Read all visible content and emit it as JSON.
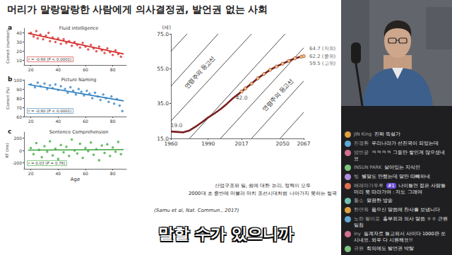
{
  "header": {
    "title": "머리가 말랑말랑한 사람에게 의사결정권, 발언권 없는 사회"
  },
  "chart_data": [
    {
      "type": "scatter",
      "panel": "a",
      "title": "Fluid intelligence",
      "y_label": "Correct (number)",
      "annotation": "r = -0.68 (P < 0.0001)",
      "color": "#d62a2a",
      "grid": false,
      "xlim": [
        15,
        90
      ],
      "xticks": [
        20,
        40,
        60,
        80
      ],
      "ylim": [
        5,
        45
      ],
      "yticks": [
        10,
        20,
        30,
        40
      ],
      "x": [
        20,
        22,
        24,
        25,
        27,
        29,
        31,
        33,
        34,
        36,
        38,
        40,
        42,
        44,
        46,
        48,
        50,
        52,
        54,
        56,
        58,
        60,
        62,
        64,
        66,
        68,
        70,
        72,
        74,
        76,
        78,
        80,
        82,
        84,
        86
      ],
      "values": [
        40,
        36,
        42,
        34,
        38,
        33,
        37,
        40,
        31,
        35,
        30,
        34,
        28,
        33,
        29,
        31,
        26,
        30,
        27,
        24,
        29,
        25,
        22,
        27,
        23,
        20,
        25,
        21,
        18,
        23,
        19,
        16,
        21,
        17,
        14
      ],
      "fit": {
        "x": [
          18,
          88
        ],
        "values": [
          39.5,
          17
        ]
      }
    },
    {
      "type": "scatter",
      "panel": "b",
      "title": "Picture Naming",
      "y_label": "Correct (%)",
      "annotation": "r = -0.60 (P < 0.0001)",
      "color": "#2f7fc1",
      "grid": false,
      "xlim": [
        15,
        90
      ],
      "xticks": [
        20,
        40,
        60,
        80
      ],
      "ylim": [
        60,
        100
      ],
      "yticks": [
        60,
        70,
        80,
        90,
        100
      ],
      "x": [
        20,
        23,
        25,
        27,
        30,
        32,
        34,
        36,
        38,
        40,
        42,
        45,
        47,
        49,
        51,
        53,
        55,
        57,
        59,
        61,
        63,
        65,
        67,
        69,
        71,
        73,
        75,
        77,
        79,
        81,
        83,
        85,
        87
      ],
      "values": [
        95,
        92,
        97,
        93,
        96,
        90,
        94,
        91,
        95,
        89,
        93,
        90,
        86,
        92,
        88,
        84,
        90,
        87,
        83,
        88,
        85,
        80,
        86,
        82,
        78,
        84,
        80,
        76,
        82,
        74,
        79,
        72,
        66
      ],
      "fit": {
        "x": [
          18,
          88
        ],
        "values": [
          95,
          77
        ]
      }
    },
    {
      "type": "scatter",
      "panel": "c",
      "title": "Sentence Comprehension",
      "y_label": "RT (ms)",
      "x_label": "Age",
      "annotation": "r = 0.03 (P = 0.76)",
      "color": "#3aa53a",
      "grid": false,
      "xlim": [
        15,
        90
      ],
      "xticks": [
        20,
        40,
        60,
        80
      ],
      "ylim": [
        -300,
        300
      ],
      "yticks": [
        -200,
        0,
        200
      ],
      "x": [
        20,
        22,
        24,
        26,
        28,
        30,
        32,
        34,
        36,
        38,
        40,
        42,
        44,
        46,
        48,
        50,
        52,
        54,
        56,
        58,
        60,
        62,
        64,
        66,
        68,
        70,
        72,
        74,
        76,
        78,
        80,
        82,
        84,
        86
      ],
      "values": [
        40,
        -60,
        120,
        10,
        -110,
        70,
        -20,
        150,
        -80,
        30,
        -140,
        90,
        -30,
        60,
        -90,
        180,
        0,
        -50,
        110,
        -120,
        40,
        -10,
        130,
        -70,
        20,
        -160,
        80,
        -40,
        100,
        -90,
        50,
        -20,
        140,
        -60
      ],
      "fit": {
        "x": [
          18,
          88
        ],
        "values": [
          5,
          15
        ]
      }
    },
    {
      "type": "line",
      "y_label": "(세)",
      "grid": false,
      "xlim": [
        1960,
        2067
      ],
      "xticks": [
        1960,
        1990,
        2017,
        2050,
        2067
      ],
      "ylim": [
        15,
        75
      ],
      "yticks": [
        {
          "value": 15,
          "label": "15.0"
        },
        {
          "value": 35,
          "label": "35.0"
        },
        {
          "value": 55,
          "label": "55.0"
        },
        {
          "value": 75,
          "label": "75.0"
        }
      ],
      "series": [
        {
          "color": "#7a1f1f",
          "marker": "none",
          "x": [
            1960,
            1970,
            1975,
            1980,
            1985,
            1990,
            1995,
            2000,
            2005,
            2010,
            2015,
            2017
          ],
          "values": [
            19.0,
            18.5,
            19.6,
            21.8,
            24.3,
            27.0,
            29.3,
            31.8,
            34.8,
            38.1,
            40.8,
            42.0
          ]
        },
        {
          "color": "#7a1f1f",
          "marker": "circle",
          "x": [
            2017,
            2020,
            2025,
            2030,
            2035,
            2040,
            2045,
            2050,
            2055,
            2060,
            2065,
            2067
          ],
          "values": [
            42.0,
            43.7,
            46.5,
            49.5,
            52.0,
            54.4,
            56.3,
            57.9,
            59.5,
            61.0,
            61.9,
            62.2
          ]
        }
      ],
      "contours": [
        {
          "x": [
            1960,
            1973
          ],
          "values": [
            65,
            75
          ]
        },
        {
          "x": [
            1960,
            1998
          ],
          "values": [
            45,
            75
          ]
        },
        {
          "x": [
            1960,
            2025
          ],
          "values": [
            25,
            75
          ]
        },
        {
          "x": [
            1975,
            2052
          ],
          "values": [
            15,
            75
          ]
        },
        {
          "x": [
            2000,
            2067
          ],
          "values": [
            15,
            67
          ]
        },
        {
          "x": [
            2025,
            2067
          ],
          "values": [
            15,
            48
          ]
        },
        {
          "x": [
            2048,
            2067
          ],
          "values": [
            15,
            30
          ]
        }
      ],
      "annotations": [
        "연령주의 등고선",
        "연령주의 등고선"
      ],
      "point_labels": [
        {
          "x": 1960,
          "y": 19.0,
          "label": "19.0"
        },
        {
          "x": 2017,
          "y": 42.0,
          "label": "42.0"
        }
      ],
      "end_labels": [
        {
          "x": 2067,
          "y": 64.7,
          "label": "64.7 (저위)"
        },
        {
          "x": 2067,
          "y": 62.2,
          "label": "62.2 (중위)"
        },
        {
          "x": 2067,
          "y": 59.5,
          "label": "59.5 (고위)"
        }
      ]
    }
  ],
  "caption": {
    "lines": [
      "산업구조와 일, 쉼에 대한 논리, 정책이 모두",
      "2000대 초 중반에 머물러 마치 조선시대처럼 나아가지 못하는 형국"
    ],
    "citation": "(Samu et al, Nat. Commun., 2017)"
  },
  "video": {
    "subtitle": "말할 수가 있으니까"
  },
  "chat": [
    {
      "user": "JIN King",
      "message": "진짜 독설가"
    },
    {
      "user": "진경환",
      "message": "우리나라가 선진국이 되었는데"
    },
    {
      "user": "밤빈궁",
      "message": "ㅋㅋㅋㅋ 그동안 쌓인게 많으셨네요"
    },
    {
      "user": "INSUN PARK",
      "message": "살아있는 지식인"
    },
    {
      "user": "빙",
      "message": "별말도 안했는데 말만 따빼하네"
    },
    {
      "user": "배레마가두루",
      "badge": "#1",
      "message": "나이들면 젊은 사람들 머리 못 따라가여 : 저도 그래여"
    },
    {
      "user": "황소",
      "message": "깔끔한 방송"
    },
    {
      "user": "한연옥",
      "message": "옳으신 말씀에 찬사를 보냅니다"
    },
    {
      "user": "노란 팔이로",
      "message": "흉부외과 의사 말씀 ㅎㅎ 근원일침"
    },
    {
      "user": "iny",
      "message": "통계자료 들고와서 사이다 1000판 쏘시네요. 와우 다 시원해요!!"
    },
    {
      "user": "규원",
      "message": "회의에도 발언권 박탈"
    }
  ]
}
